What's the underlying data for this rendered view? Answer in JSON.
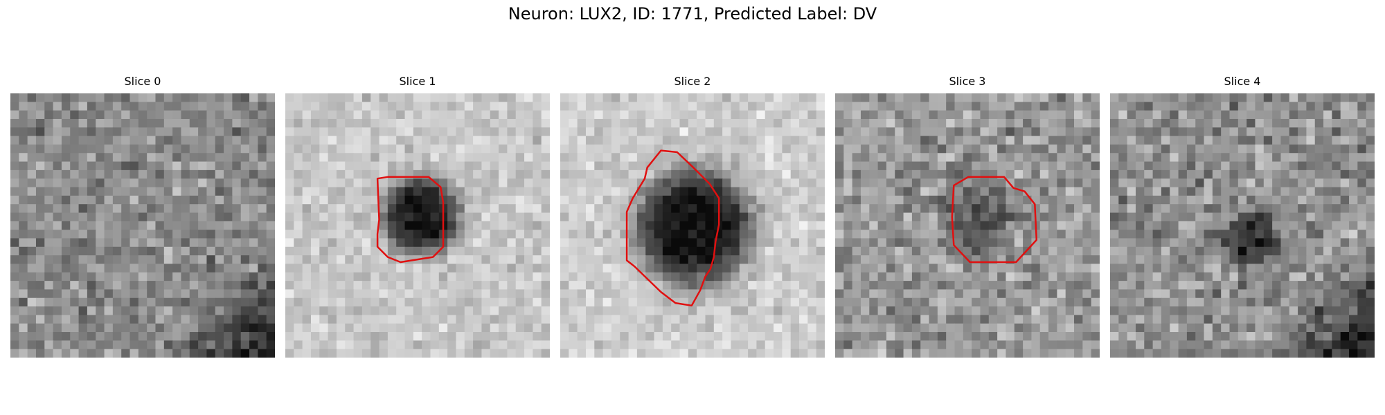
{
  "figure": {
    "title": "Neuron: LUX2, ID: 1771, Predicted Label: DV"
  },
  "contour_color": "#e01010",
  "grid_size": 31,
  "panels": [
    {
      "title": "Slice 0",
      "base_gray": 140,
      "noise": 52,
      "blob": null,
      "contour": null,
      "dark_corner": "bottom-right"
    },
    {
      "title": "Slice 1",
      "base_gray": 200,
      "noise": 34,
      "blob": {
        "cx": 15.5,
        "cy": 13.8,
        "r": 4.2,
        "depth": 180
      },
      "contour": [
        [
          10.8,
          10.0
        ],
        [
          12.0,
          9.8
        ],
        [
          16.8,
          9.8
        ],
        [
          18.2,
          11.0
        ],
        [
          18.5,
          12.8
        ],
        [
          18.5,
          18.0
        ],
        [
          17.3,
          19.2
        ],
        [
          13.5,
          19.8
        ],
        [
          12.0,
          19.2
        ],
        [
          10.8,
          18.0
        ],
        [
          10.8,
          16.5
        ],
        [
          11.0,
          14.8
        ]
      ],
      "dark_corner": null
    },
    {
      "title": "Slice 2",
      "base_gray": 205,
      "noise": 32,
      "blob": {
        "cx": 15.2,
        "cy": 15.2,
        "r": 6.3,
        "depth": 195
      },
      "contour": [
        [
          9.9,
          10.0
        ],
        [
          10.2,
          8.7
        ],
        [
          11.8,
          6.7
        ],
        [
          13.7,
          6.9
        ],
        [
          15.6,
          8.7
        ],
        [
          17.5,
          10.6
        ],
        [
          18.6,
          12.3
        ],
        [
          18.6,
          15.4
        ],
        [
          18.2,
          17.4
        ],
        [
          18.0,
          19.2
        ],
        [
          17.6,
          20.6
        ],
        [
          17.0,
          21.5
        ],
        [
          16.4,
          23.1
        ],
        [
          15.4,
          24.9
        ],
        [
          13.5,
          24.6
        ],
        [
          11.8,
          23.3
        ],
        [
          8.7,
          20.3
        ],
        [
          7.8,
          19.6
        ],
        [
          7.8,
          13.9
        ],
        [
          8.5,
          12.3
        ]
      ],
      "dark_corner": null
    },
    {
      "title": "Slice 3",
      "base_gray": 150,
      "noise": 55,
      "blob": {
        "cx": 16.0,
        "cy": 14.5,
        "r": 4.0,
        "depth": 60
      },
      "contour": [
        [
          13.9,
          10.8
        ],
        [
          15.6,
          9.8
        ],
        [
          19.8,
          9.8
        ],
        [
          20.9,
          11.1
        ],
        [
          22.2,
          11.5
        ],
        [
          23.4,
          13.0
        ],
        [
          23.6,
          17.2
        ],
        [
          21.2,
          19.8
        ],
        [
          15.8,
          19.8
        ],
        [
          13.9,
          17.8
        ],
        [
          13.7,
          14.5
        ]
      ],
      "dark_corner": null
    },
    {
      "title": "Slice 4",
      "base_gray": 145,
      "noise": 55,
      "blob": {
        "cx": 16.2,
        "cy": 16.8,
        "r": 3.2,
        "depth": 90
      },
      "contour": null,
      "dark_corner": "bottom-right"
    }
  ]
}
